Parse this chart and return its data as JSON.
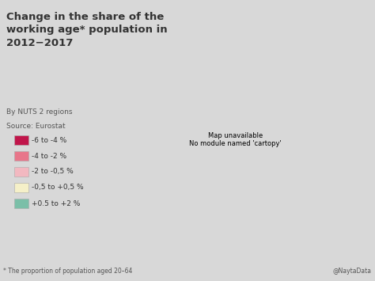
{
  "title": "Change in the share of the\nworking age* population in\n2012−2017",
  "subtitle": "By NUTS 2 regions",
  "source": "Source: Eurostat",
  "footnote": "* The proportion of population aged 20–64",
  "credit": "@NaytaData",
  "background_color": "#d8d8d8",
  "map_background": "#d8d8d8",
  "legend_entries": [
    {
      "label": "-6 to -4 %",
      "color": "#c0154a"
    },
    {
      "label": "-4 to -2 %",
      "color": "#e8768a"
    },
    {
      "label": "-2 to -0,5 %",
      "color": "#f2b8c0"
    },
    {
      "label": "-0,5 to +0,5 %",
      "color": "#f5f0c8"
    },
    {
      "label": "+0.5 to +2 %",
      "color": "#7bbfa8"
    }
  ],
  "country_colors": {
    "Iceland": "#7bbfa8",
    "Norway": "#f5f0c8",
    "Sweden": "#e8768a",
    "Finland": "#e8768a",
    "Denmark": "#e8768a",
    "United Kingdom": "#e8768a",
    "Ireland": "#e8768a",
    "Portugal": "#e8768a",
    "Spain": "#f2b8c0",
    "France": "#e8768a",
    "Belgium": "#f5f0c8",
    "Netherlands": "#f5f0c8",
    "Luxembourg": "#f2b8c0",
    "Germany": "#c0154a",
    "Switzerland": "#f2b8c0",
    "Austria": "#c0154a",
    "Italy": "#f2b8c0",
    "Czech Republic": "#c0154a",
    "Slovakia": "#c0154a",
    "Hungary": "#c0154a",
    "Poland": "#e8768a",
    "Lithuania": "#e8768a",
    "Latvia": "#e8768a",
    "Estonia": "#e8768a",
    "Romania": "#e8768a",
    "Bulgaria": "#e8768a",
    "Greece": "#f2b8c0",
    "Croatia": "#e8768a",
    "Slovenia": "#e8768a",
    "Serbia": "#e8768a",
    "Montenegro": "#e8768a",
    "Bosnia and Herzegovina": "#e8768a",
    "Albania": "#e8768a",
    "North Macedonia": "#e8768a",
    "Turkey": "#7bbfa8",
    "Belarus": "#e8768a",
    "Ukraine": "#e8768a",
    "Moldova": "#e8768a",
    "Russia": "#e8768a"
  },
  "title_fontsize": 9.5,
  "subtitle_fontsize": 6.5,
  "source_fontsize": 6.5,
  "legend_fontsize": 6.5,
  "footnote_fontsize": 5.5,
  "credit_fontsize": 5.5,
  "text_color": "#333333",
  "text_color2": "#555555"
}
